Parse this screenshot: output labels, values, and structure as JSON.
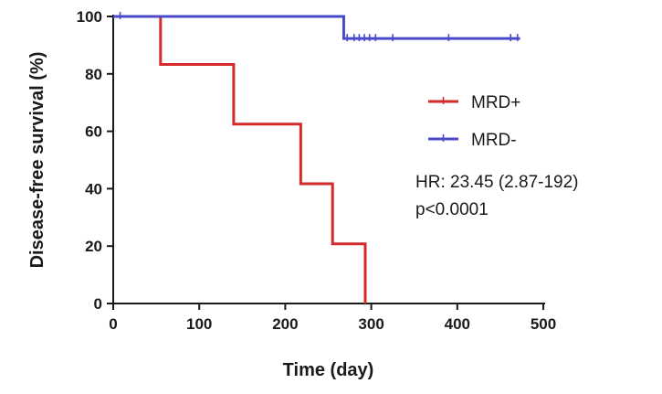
{
  "chart_data": {
    "type": "line",
    "subtype": "kaplan-meier step",
    "title": "",
    "xlabel": "Time (day)",
    "ylabel": "Disease-free survival (%)",
    "xlim": [
      0,
      500
    ],
    "ylim": [
      0,
      100
    ],
    "xticks": [
      0,
      100,
      200,
      300,
      400,
      500
    ],
    "yticks": [
      0,
      20,
      40,
      60,
      80,
      100
    ],
    "grid": false,
    "legend": "right",
    "series": [
      {
        "name": "MRD+",
        "color": "#d42a2a",
        "steps": [
          {
            "x": 0,
            "y": 100
          },
          {
            "x": 55,
            "y": 83.3
          },
          {
            "x": 140,
            "y": 62.5
          },
          {
            "x": 218,
            "y": 41.7
          },
          {
            "x": 255,
            "y": 20.8
          },
          {
            "x": 293,
            "y": 0
          }
        ],
        "censored": [],
        "end_x": 293
      },
      {
        "name": "MRD-",
        "color": "#4a4ac8",
        "steps": [
          {
            "x": 0,
            "y": 100
          },
          {
            "x": 268,
            "y": 92.3
          }
        ],
        "censored": [
          {
            "x": 8,
            "y": 100
          },
          {
            "x": 272,
            "y": 92.3
          },
          {
            "x": 280,
            "y": 92.3
          },
          {
            "x": 286,
            "y": 92.3
          },
          {
            "x": 292,
            "y": 92.3
          },
          {
            "x": 298,
            "y": 92.3
          },
          {
            "x": 305,
            "y": 92.3
          },
          {
            "x": 325,
            "y": 92.3
          },
          {
            "x": 390,
            "y": 92.3
          },
          {
            "x": 462,
            "y": 92.3
          },
          {
            "x": 470,
            "y": 92.3
          }
        ],
        "end_x": 473
      }
    ],
    "annotations": [
      "HR: 23.45 (2.87-192)",
      "p<0.0001"
    ]
  }
}
